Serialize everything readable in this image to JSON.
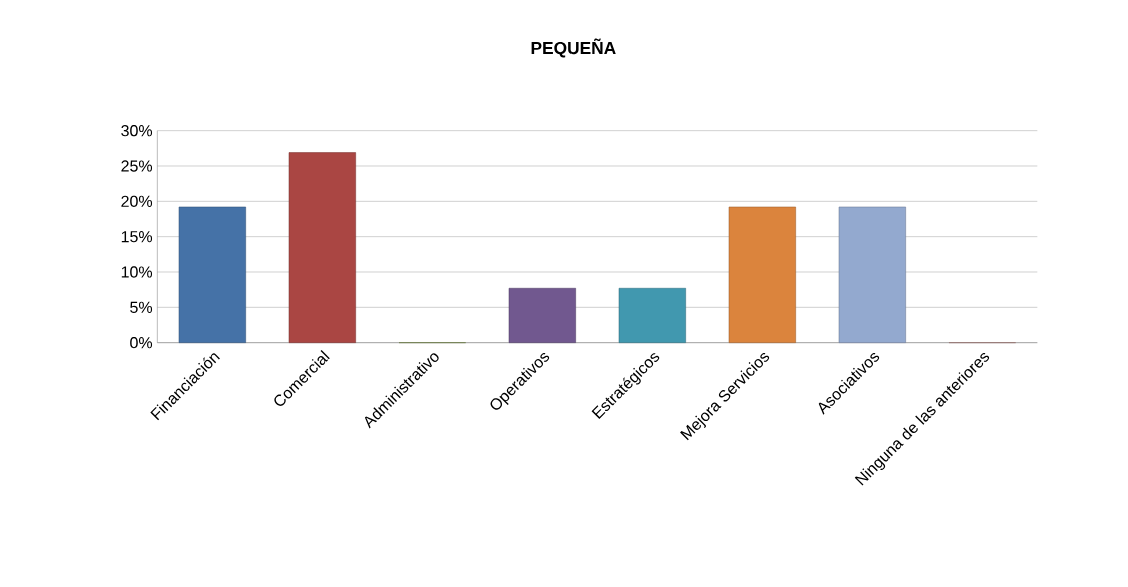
{
  "chart_data": {
    "type": "bar",
    "title": "PEQUEÑA",
    "categories": [
      "Financiación",
      "Comercial",
      "Administrativo",
      "Operativos",
      "Estratégicos",
      "Mejora Servicios",
      "Asociativos",
      "Ninguna de las anteriores"
    ],
    "values": [
      19.2,
      26.9,
      0,
      7.7,
      7.7,
      19.2,
      19.2,
      0
    ],
    "colors": [
      "#4572a7",
      "#aa4643",
      "#89a54e",
      "#71588f",
      "#4198af",
      "#db843d",
      "#93a9cf",
      "#d09391"
    ],
    "ylim": [
      0,
      30
    ],
    "yticks": [
      {
        "value": 0,
        "label": "0%"
      },
      {
        "value": 5,
        "label": "5%"
      },
      {
        "value": 10,
        "label": "10%"
      },
      {
        "value": 15,
        "label": "15%"
      },
      {
        "value": 20,
        "label": "20%"
      },
      {
        "value": 25,
        "label": "25%"
      },
      {
        "value": 30,
        "label": "30%"
      }
    ],
    "grid": "y"
  }
}
